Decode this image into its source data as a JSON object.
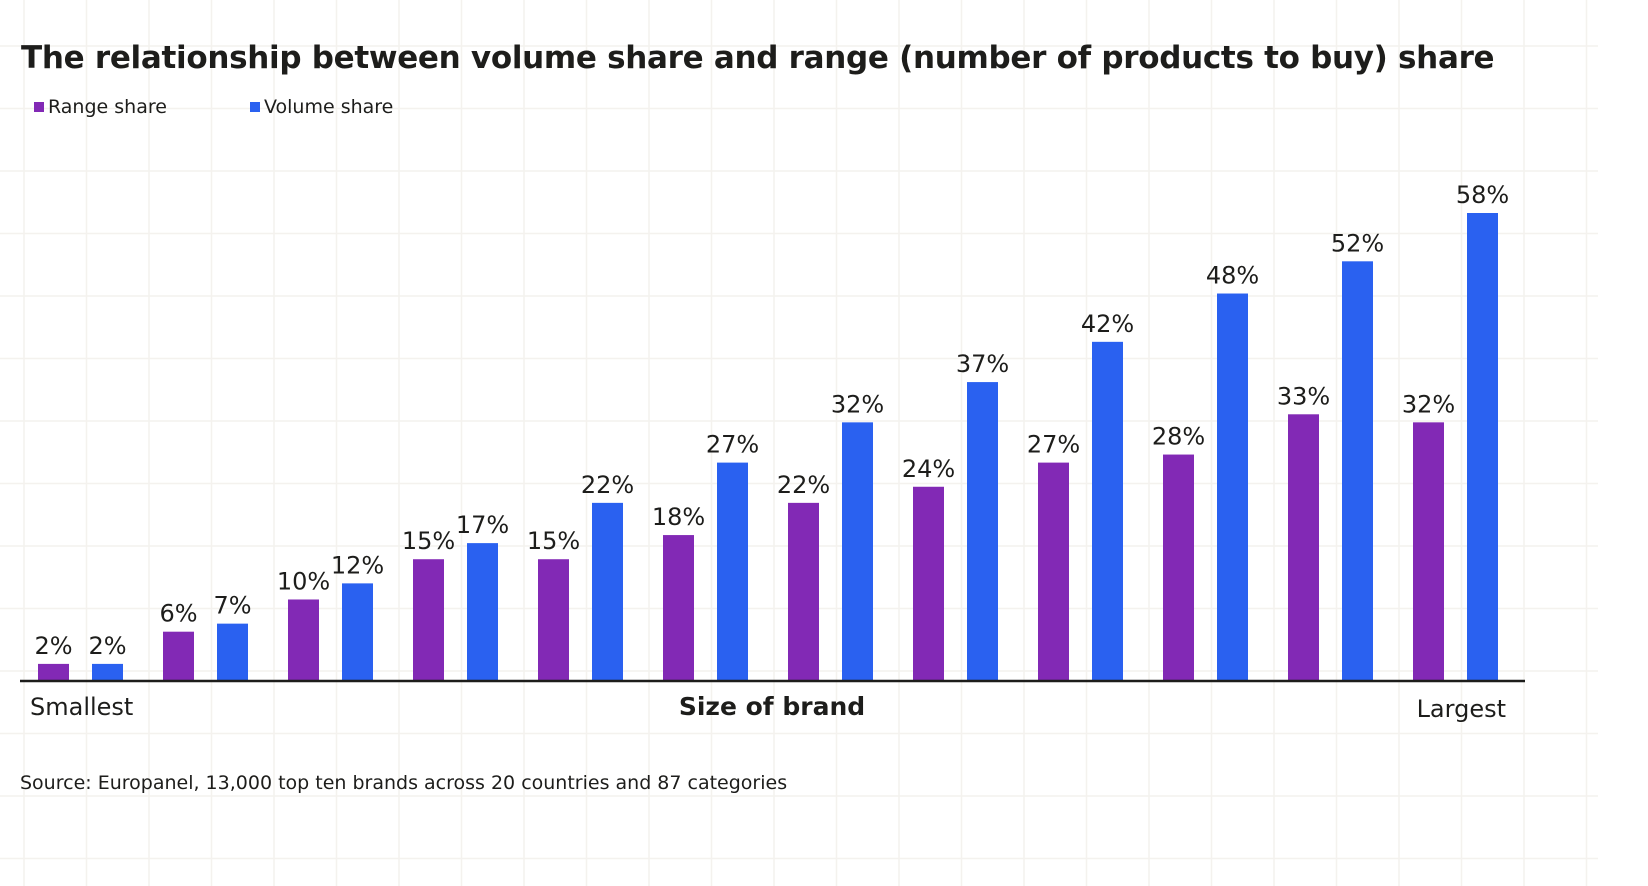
{
  "chart_data": {
    "type": "bar",
    "title": "The relationship between volume share and range (number of products to buy) share",
    "xlabel": "Size of brand",
    "x_start_label": "Smallest",
    "x_end_label": "Largest",
    "ylabel": "",
    "ylim": [
      0,
      60
    ],
    "grid": false,
    "legend_position": "top-left",
    "categories": [
      "1",
      "2",
      "3",
      "4",
      "5",
      "6",
      "7",
      "8",
      "9",
      "10",
      "11",
      "12"
    ],
    "series": [
      {
        "name": "Range share",
        "color": "#8229B5",
        "values": [
          2,
          6,
          10,
          15,
          15,
          18,
          22,
          24,
          27,
          28,
          33,
          32
        ]
      },
      {
        "name": "Volume share",
        "color": "#2A61F0",
        "values": [
          2,
          7,
          12,
          17,
          22,
          27,
          32,
          37,
          42,
          48,
          52,
          58
        ]
      }
    ],
    "value_label_suffix": "%",
    "source": "Source: Europanel, 13,000 top ten brands across 20 countries and 87 categories"
  }
}
